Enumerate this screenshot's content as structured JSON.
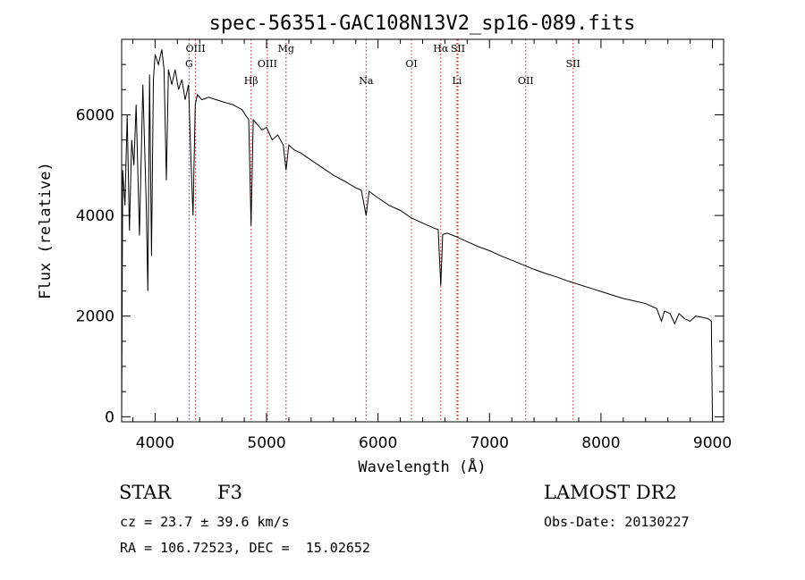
{
  "chart_data": {
    "type": "line",
    "title": "spec-56351-GAC108N13V2_sp16-089.fits",
    "xlabel": "Wavelength (Å)",
    "ylabel": "Flux (relative)",
    "xlim": [
      3700,
      9100
    ],
    "ylim": [
      -100,
      7500
    ],
    "xticks": [
      4000,
      5000,
      6000,
      7000,
      8000,
      9000
    ],
    "yticks": [
      0,
      2000,
      4000,
      6000
    ],
    "grid": false,
    "spectral_lines": [
      {
        "label": "OIII",
        "wavelength": 4363
      },
      {
        "label": "G",
        "wavelength": 4305
      },
      {
        "label": "Hβ",
        "wavelength": 4861
      },
      {
        "label": "OIII",
        "wavelength": 5007
      },
      {
        "label": "Mg",
        "wavelength": 5175
      },
      {
        "label": "Na",
        "wavelength": 5893
      },
      {
        "label": "OI",
        "wavelength": 6300
      },
      {
        "label": "Hα",
        "wavelength": 6563
      },
      {
        "label": "SII",
        "wavelength": 6717
      },
      {
        "label": "Li",
        "wavelength": 6708
      },
      {
        "label": "OII",
        "wavelength": 7325
      },
      {
        "label": "SII",
        "wavelength": 7750
      }
    ],
    "series": [
      {
        "x": [
          3700,
          3710,
          3730,
          3750,
          3770,
          3790,
          3810,
          3830,
          3860,
          3890,
          3920,
          3935,
          3950,
          3968,
          3985,
          4000,
          4030,
          4060,
          4080,
          4101,
          4120,
          4150,
          4180,
          4210,
          4240,
          4270,
          4300,
          4320,
          4340,
          4360,
          4380,
          4420,
          4480,
          4550,
          4620,
          4700,
          4780,
          4840,
          4861,
          4880,
          4920,
          4960,
          5000,
          5050,
          5100,
          5150,
          5175,
          5200,
          5250,
          5300,
          5400,
          5500,
          5600,
          5700,
          5800,
          5850,
          5893,
          5920,
          6000,
          6100,
          6200,
          6300,
          6400,
          6500,
          6540,
          6563,
          6580,
          6620,
          6700,
          6800,
          6900,
          7000,
          7100,
          7200,
          7300,
          7400,
          7500,
          7600,
          7700,
          7800,
          7900,
          8000,
          8100,
          8200,
          8300,
          8400,
          8500,
          8542,
          8570,
          8620,
          8662,
          8700,
          8750,
          8800,
          8850,
          8900,
          8960,
          8990,
          9000
        ],
        "y": [
          0,
          4900,
          4200,
          6000,
          3700,
          5500,
          5000,
          6200,
          3600,
          6600,
          4300,
          2500,
          6800,
          3200,
          6700,
          7200,
          7000,
          7300,
          6900,
          4700,
          6900,
          6600,
          6900,
          6500,
          6700,
          6300,
          6600,
          5200,
          4000,
          6200,
          6400,
          6300,
          6350,
          6300,
          6250,
          6200,
          6100,
          5900,
          3800,
          5900,
          5800,
          5700,
          5750,
          5500,
          5600,
          5400,
          4900,
          5400,
          5300,
          5250,
          5100,
          4950,
          4800,
          4680,
          4550,
          4500,
          4000,
          4480,
          4350,
          4200,
          4100,
          3950,
          3850,
          3750,
          3720,
          2600,
          3620,
          3650,
          3580,
          3480,
          3380,
          3300,
          3200,
          3110,
          3020,
          2930,
          2850,
          2780,
          2700,
          2630,
          2560,
          2490,
          2420,
          2350,
          2300,
          2250,
          2150,
          1900,
          2100,
          2050,
          1850,
          2050,
          1950,
          1900,
          2000,
          1980,
          1950,
          1900,
          0
        ]
      }
    ]
  },
  "info": {
    "class_label": "STAR",
    "subclass": "F3",
    "survey": "LAMOST DR2",
    "cz": "cz = 23.7 ± 39.6 km/s",
    "obs_date": "Obs-Date: 20130227",
    "coords": "RA = 106.72523, DEC =  15.02652"
  }
}
